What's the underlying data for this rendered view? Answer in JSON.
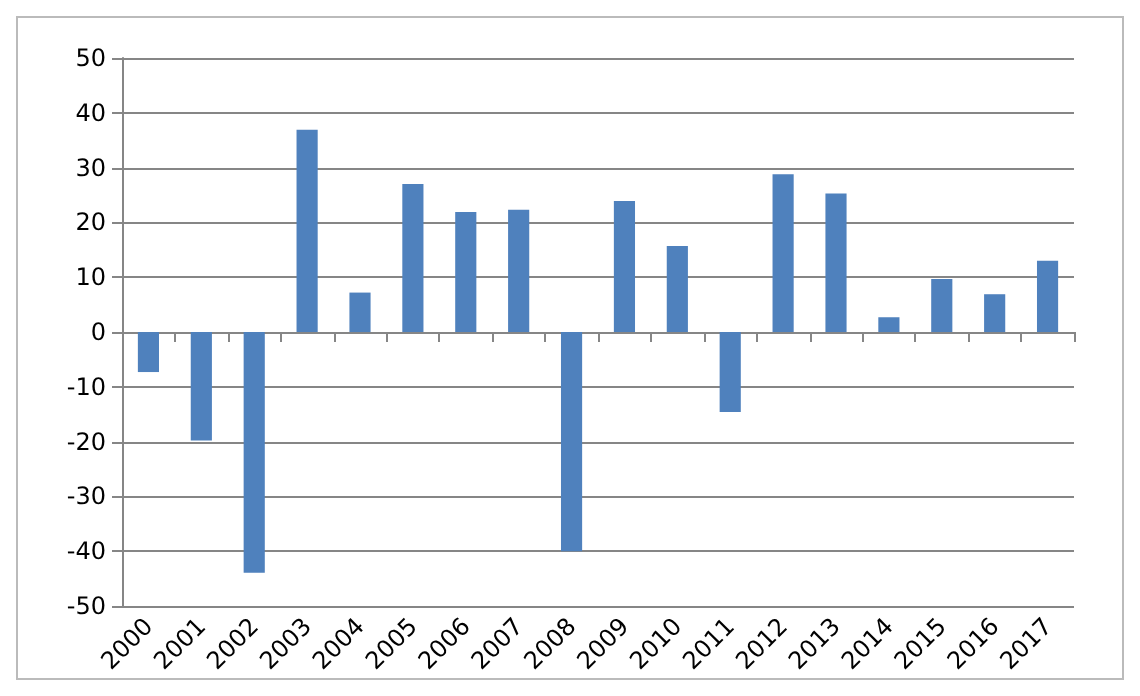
{
  "chart_data": {
    "type": "bar",
    "categories": [
      "2000",
      "2001",
      "2002",
      "2003",
      "2004",
      "2005",
      "2006",
      "2007",
      "2008",
      "2009",
      "2010",
      "2011",
      "2012",
      "2013",
      "2014",
      "2015",
      "2016",
      "2017"
    ],
    "values": [
      -7.3,
      -19.8,
      -43.9,
      36.9,
      7.2,
      27,
      21.9,
      22.3,
      -40,
      23.9,
      15.7,
      -14.6,
      28.8,
      25.3,
      2.7,
      9.7,
      6.9,
      13
    ],
    "color": "#4f81bd",
    "ylim": [
      -50,
      50
    ],
    "yticks": [
      -50,
      -40,
      -30,
      -20,
      -10,
      0,
      10,
      20,
      30,
      40,
      50
    ],
    "grid": "y"
  }
}
